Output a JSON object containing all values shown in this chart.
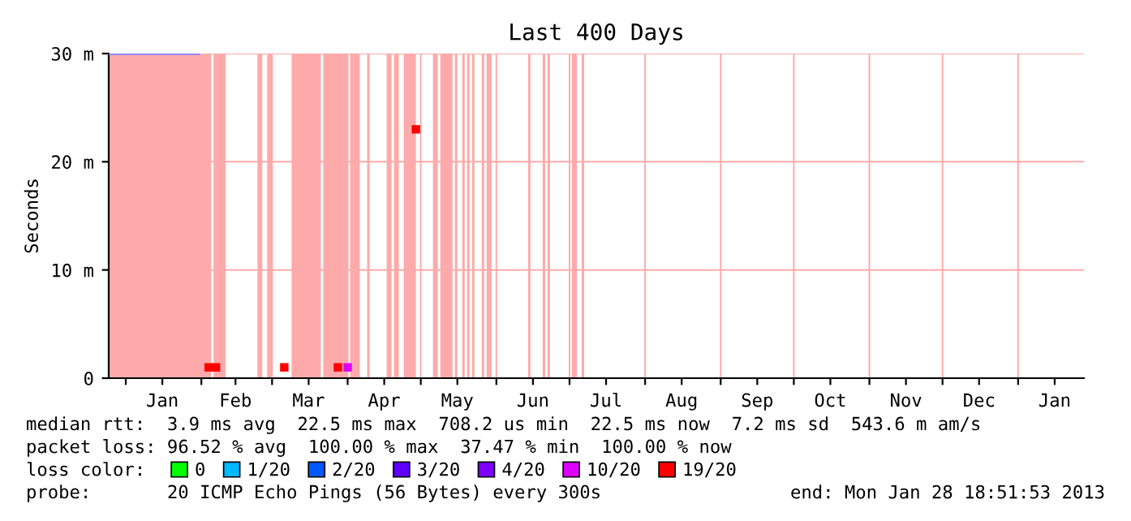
{
  "chart_data": {
    "type": "line",
    "title": "Last 400 Days",
    "ylabel": "Seconds",
    "xlim": [
      "2011-12-25",
      "2013-01-28"
    ],
    "xticks": [
      {
        "value": "2012-01-01",
        "label": null
      },
      {
        "value": "2012-01-16",
        "label": "Jan"
      },
      {
        "value": "2012-02-01",
        "label": null
      },
      {
        "value": "2012-02-15",
        "label": "Feb"
      },
      {
        "value": "2012-03-01",
        "label": null
      },
      {
        "value": "2012-03-16",
        "label": "Mar"
      },
      {
        "value": "2012-04-01",
        "label": null
      },
      {
        "value": "2012-04-16",
        "label": "Apr"
      },
      {
        "value": "2012-05-01",
        "label": null
      },
      {
        "value": "2012-05-16",
        "label": "May"
      },
      {
        "value": "2012-06-01",
        "label": null
      },
      {
        "value": "2012-06-16",
        "label": "Jun"
      },
      {
        "value": "2012-07-01",
        "label": null
      },
      {
        "value": "2012-07-16",
        "label": "Jul"
      },
      {
        "value": "2012-08-01",
        "label": null
      },
      {
        "value": "2012-08-16",
        "label": "Aug"
      },
      {
        "value": "2012-09-01",
        "label": null
      },
      {
        "value": "2012-09-16",
        "label": "Sep"
      },
      {
        "value": "2012-10-01",
        "label": null
      },
      {
        "value": "2012-10-16",
        "label": "Oct"
      },
      {
        "value": "2012-11-01",
        "label": null
      },
      {
        "value": "2012-11-16",
        "label": "Nov"
      },
      {
        "value": "2012-12-01",
        "label": null
      },
      {
        "value": "2012-12-16",
        "label": "Dec"
      },
      {
        "value": "2013-01-01",
        "label": null
      },
      {
        "value": "2013-01-16",
        "label": "Jan"
      }
    ],
    "ylim": [
      0,
      30
    ],
    "yticks": [
      0,
      {
        "value": 10,
        "label": "10 m"
      },
      {
        "value": 20,
        "label": "20 m"
      },
      {
        "value": 30,
        "label": "30 m"
      }
    ],
    "marker": "none",
    "grid": true,
    "bands": [
      {
        "axis": "x",
        "from": "2011-12-25",
        "to": "2012-02-05",
        "color": "#ffaaaa"
      },
      {
        "axis": "x",
        "from": "2012-02-06",
        "to": "2012-02-11",
        "color": "#ffaaaa"
      },
      {
        "axis": "x",
        "from": "2012-02-24",
        "to": "2012-02-26",
        "color": "#ffaaaa"
      },
      {
        "axis": "x",
        "from": "2012-02-28",
        "to": "2012-03-01",
        "color": "#ffaaaa"
      },
      {
        "axis": "x",
        "from": "2012-03-09",
        "to": "2012-03-21",
        "color": "#ffaaaa"
      },
      {
        "axis": "x",
        "from": "2012-03-22",
        "to": "2012-04-01",
        "color": "#ffaaaa"
      },
      {
        "axis": "x",
        "from": "2012-04-02",
        "to": "2012-04-06",
        "color": "#ffaaaa"
      },
      {
        "axis": "x",
        "from": "2012-04-09",
        "to": "2012-04-10",
        "color": "#ffaaaa"
      },
      {
        "axis": "x",
        "from": "2012-04-17",
        "to": "2012-04-19",
        "color": "#ffaaaa"
      },
      {
        "axis": "x",
        "from": "2012-04-20",
        "to": "2012-04-22",
        "color": "#ffaaaa"
      },
      {
        "axis": "x",
        "from": "2012-04-24",
        "to": "2012-04-29",
        "color": "#ffaaaa"
      },
      {
        "axis": "x",
        "from": "2012-05-06",
        "to": "2012-05-08",
        "color": "#ffaaaa"
      },
      {
        "axis": "x",
        "from": "2012-05-09",
        "to": "2012-05-14",
        "color": "#ffaaaa"
      },
      {
        "axis": "x",
        "from": "2012-05-15",
        "to": "2012-05-16",
        "color": "#ffaaaa"
      },
      {
        "axis": "x",
        "from": "2012-05-18",
        "to": "2012-05-19",
        "color": "#ffaaaa"
      },
      {
        "axis": "x",
        "from": "2012-05-20",
        "to": "2012-05-21",
        "color": "#ffaaaa"
      },
      {
        "axis": "x",
        "from": "2012-05-22",
        "to": "2012-05-23",
        "color": "#ffaaaa"
      },
      {
        "axis": "x",
        "from": "2012-05-26",
        "to": "2012-05-27",
        "color": "#ffaaaa"
      },
      {
        "axis": "x",
        "from": "2012-05-28",
        "to": "2012-05-30",
        "color": "#ffaaaa"
      },
      {
        "axis": "x",
        "from": "2012-06-14",
        "to": "2012-06-15",
        "color": "#ffaaaa"
      },
      {
        "axis": "x",
        "from": "2012-06-20",
        "to": "2012-06-21",
        "color": "#ffaaaa"
      },
      {
        "axis": "x",
        "from": "2012-06-22",
        "to": "2012-06-23",
        "color": "#ffaaaa"
      },
      {
        "axis": "x",
        "from": "2012-07-02",
        "to": "2012-07-04",
        "color": "#ffaaaa"
      },
      {
        "axis": "x",
        "from": "2012-07-06",
        "to": "2012-07-07",
        "color": "#ffaaaa"
      }
    ],
    "legend_title": "loss color:",
    "legend": "bottom",
    "series": [
      {
        "color": "#8080ff",
        "x": [
          "2011-12-25",
          "2012-01-31"
        ],
        "values": [
          30,
          30
        ]
      },
      {
        "type": "scatter",
        "marker": "square",
        "color": "#ff0000",
        "colors": [
          "#ff0000",
          "#ff0000",
          "#ff0000",
          "#ff0000",
          "#dd00ff",
          "#ff0000"
        ],
        "x": [
          "2012-02-04",
          "2012-02-07",
          "2012-03-06",
          "2012-03-28",
          "2012-04-01",
          "2012-04-29"
        ],
        "values": [
          1,
          1,
          1,
          1,
          1,
          23
        ]
      },
      {
        "name": "0",
        "color": "#00ff00"
      },
      {
        "name": "1/20",
        "color": "#00b8ff"
      },
      {
        "name": "2/20",
        "color": "#0059ff"
      },
      {
        "name": "3/20",
        "color": "#5e00ff"
      },
      {
        "name": "4/20",
        "color": "#7e00ff"
      },
      {
        "name": "10/20",
        "color": "#dd00ff"
      },
      {
        "name": "19/20",
        "color": "#ff0000"
      }
    ],
    "annotations": [
      "median rtt:  3.9 ms avg  22.5 ms max  708.2 us min  22.5 ms now  7.2 ms sd  543.6 m am/s",
      "packet loss: 96.52 % avg  100.00 % max  37.47 % min  100.00 % now",
      "probe:       20 ICMP Echo Pings (56 Bytes) every 300s",
      "end: Mon Jan 28 18:51:53 2013"
    ]
  }
}
